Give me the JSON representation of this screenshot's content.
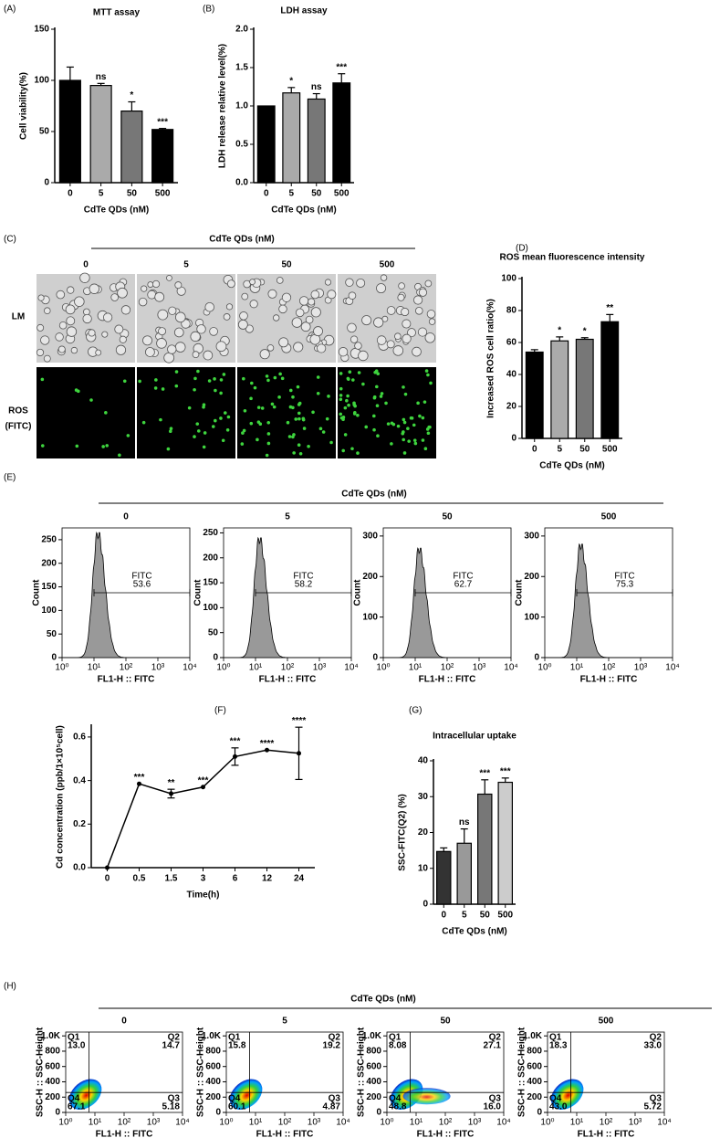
{
  "panel_labels": [
    "(A)",
    "(B)",
    "(C)",
    "(D)",
    "(E)",
    "(F)",
    "(G)",
    "(H)"
  ],
  "image_panel": {
    "header": "CdTe QDs (nM)",
    "columns": [
      "0",
      "5",
      "50",
      "500"
    ],
    "rows": [
      "LM",
      "ROS"
    ],
    "row_sublabel": "(FITC)"
  },
  "group_headers": {
    "E": "CdTe QDs (nM)",
    "H": "CdTe QDs (nM)"
  },
  "chart_data": [
    {
      "type": "bar",
      "title": "MTT assay",
      "categories": [
        "0",
        "5",
        "50",
        "500"
      ],
      "values": [
        100,
        95,
        70,
        52
      ],
      "errors": [
        13,
        2,
        9,
        1
      ],
      "annotations": [
        null,
        "ns",
        "*",
        "***"
      ],
      "colors": [
        "#000000",
        "#aaaaaa",
        "#777777",
        "#000000"
      ],
      "ylim": [
        0,
        150
      ],
      "yticks": [
        0,
        50,
        100,
        150
      ],
      "xlabel": "CdTe QDs (nM)",
      "ylabel": "Cell viability(%)"
    },
    {
      "type": "bar",
      "title": "LDH assay",
      "categories": [
        "0",
        "5",
        "50",
        "500"
      ],
      "values": [
        1.0,
        1.17,
        1.09,
        1.3
      ],
      "errors": [
        0,
        0.07,
        0.07,
        0.12
      ],
      "annotations": [
        null,
        "*",
        "ns",
        "***"
      ],
      "colors": [
        "#000000",
        "#aaaaaa",
        "#777777",
        "#000000"
      ],
      "ylim": [
        0,
        2
      ],
      "yticks": [
        {
          "value": 0,
          "label": "0.0"
        },
        {
          "value": 0.5,
          "label": "0.5"
        },
        {
          "value": 1,
          "label": "1.0"
        },
        {
          "value": 1.5,
          "label": "1.5"
        },
        {
          "value": 2,
          "label": "2.0"
        }
      ],
      "xlabel": "CdTe QDs (nM)",
      "ylabel": "LDH release relative level(%)"
    },
    {
      "type": "bar",
      "title": "ROS mean fluorescence intensity",
      "categories": [
        "0",
        "5",
        "50",
        "500"
      ],
      "values": [
        54,
        61,
        62,
        73
      ],
      "errors": [
        1.5,
        2.5,
        1,
        4.5
      ],
      "annotations": [
        null,
        "*",
        "*",
        "**"
      ],
      "colors": [
        "#000000",
        "#aaaaaa",
        "#777777",
        "#000000"
      ],
      "ylim": [
        0,
        100
      ],
      "yticks": [
        0,
        20,
        40,
        60,
        80,
        100
      ],
      "xlabel": "CdTe QDs (nM)",
      "ylabel": "Increased ROS cell ratio(%)"
    },
    {
      "type": "histogram",
      "title": "0",
      "peak": 265,
      "gate_label": "FITC",
      "gate_value": 53.6,
      "log_x": true,
      "xlim": [
        1,
        10000
      ],
      "xticks": [
        {
          "value": 1,
          "label": "10⁰"
        },
        {
          "value": 10,
          "label": "10¹"
        },
        {
          "value": 100,
          "label": "10²"
        },
        {
          "value": 1000,
          "label": "10³"
        },
        {
          "value": 10000,
          "label": "10⁴"
        }
      ],
      "ylim": [
        0,
        275
      ],
      "yticks": [
        0,
        50,
        100,
        150,
        200,
        250
      ],
      "xlabel": "FL1-H :: FITC",
      "ylabel": "Count"
    },
    {
      "type": "histogram",
      "title": "5",
      "peak": 240,
      "gate_label": "FITC",
      "gate_value": 58.2,
      "log_x": true,
      "xlim": [
        1,
        10000
      ],
      "xticks": [
        {
          "value": 1,
          "label": "10⁰"
        },
        {
          "value": 10,
          "label": "10¹"
        },
        {
          "value": 100,
          "label": "10²"
        },
        {
          "value": 1000,
          "label": "10³"
        },
        {
          "value": 10000,
          "label": "10⁴"
        }
      ],
      "ylim": [
        0,
        260
      ],
      "yticks": [
        0,
        50,
        100,
        150,
        200,
        250
      ],
      "xlabel": "FL1-H :: FITC",
      "ylabel": "Count"
    },
    {
      "type": "histogram",
      "title": "50",
      "peak": 270,
      "gate_label": "FITC",
      "gate_value": 62.7,
      "log_x": true,
      "xlim": [
        1,
        10000
      ],
      "xticks": [
        {
          "value": 1,
          "label": "10⁰"
        },
        {
          "value": 10,
          "label": "10¹"
        },
        {
          "value": 100,
          "label": "10²"
        },
        {
          "value": 1000,
          "label": "10³"
        },
        {
          "value": 10000,
          "label": "10⁴"
        }
      ],
      "ylim": [
        0,
        320
      ],
      "yticks": [
        0,
        100,
        200,
        300
      ],
      "xlabel": "FL1-H :: FITC",
      "ylabel": "Count"
    },
    {
      "type": "histogram",
      "title": "500",
      "peak": 280,
      "gate_label": "FITC",
      "gate_value": 75.3,
      "log_x": true,
      "xlim": [
        1,
        10000
      ],
      "xticks": [
        {
          "value": 1,
          "label": "10⁰"
        },
        {
          "value": 10,
          "label": "10¹"
        },
        {
          "value": 100,
          "label": "10²"
        },
        {
          "value": 1000,
          "label": "10³"
        },
        {
          "value": 10000,
          "label": "10⁴"
        }
      ],
      "ylim": [
        0,
        320
      ],
      "yticks": [
        0,
        100,
        200,
        300
      ],
      "xlabel": "FL1-H :: FITC",
      "ylabel": "Count"
    },
    {
      "type": "line",
      "categories": [
        "0",
        "0.5",
        "1.5",
        "3",
        "6",
        "12",
        "24"
      ],
      "values": [
        0,
        0.385,
        0.34,
        0.37,
        0.51,
        0.54,
        0.525
      ],
      "errors": [
        0,
        0,
        0.02,
        0,
        0.04,
        0,
        0.12
      ],
      "annotations": [
        null,
        "***",
        "**",
        "***",
        "***",
        "****",
        "****"
      ],
      "color": "#000000",
      "ylim": [
        0,
        0.65
      ],
      "yticks": [
        {
          "value": 0,
          "label": "0.0"
        },
        {
          "value": 0.2,
          "label": "0.2"
        },
        {
          "value": 0.4,
          "label": "0.4"
        },
        {
          "value": 0.6,
          "label": "0.6"
        }
      ],
      "xlabel": "Time(h)",
      "ylabel": "Cd concentration (ppb/1×10⁵cell)"
    },
    {
      "type": "bar",
      "title": "Intracellular uptake",
      "categories": [
        "0",
        "5",
        "50",
        "500"
      ],
      "values": [
        14.7,
        17,
        30.7,
        34
      ],
      "errors": [
        1,
        4,
        4,
        1.2
      ],
      "annotations": [
        null,
        "ns",
        "***",
        "***"
      ],
      "colors": [
        "#333333",
        "#999999",
        "#777777",
        "#cccccc"
      ],
      "ylim": [
        0,
        40
      ],
      "yticks": [
        0,
        10,
        20,
        30,
        40
      ],
      "xlabel": "CdTe QDs (nM)",
      "ylabel": "SSC-FITC(Q2) (%)"
    },
    {
      "type": "quadrant",
      "title": "0",
      "quadrants": [
        "Q1",
        "Q2",
        "Q3",
        "Q4"
      ],
      "values": [
        13.0,
        14.7,
        5.18,
        67.1
      ],
      "value_labels": [
        "13.0",
        "14.7",
        "5.18",
        "67.1"
      ],
      "log_x": true,
      "xlim": [
        1,
        10000
      ],
      "xticks": [
        {
          "value": 1,
          "label": "10⁰"
        },
        {
          "value": 10,
          "label": "10¹"
        },
        {
          "value": 100,
          "label": "10²"
        },
        {
          "value": 1000,
          "label": "10³"
        },
        {
          "value": 10000,
          "label": "10⁴"
        }
      ],
      "ylim": [
        0,
        1050
      ],
      "yticks": [
        0,
        200,
        400,
        600,
        800,
        {
          "value": 1000,
          "label": "1.0K"
        }
      ],
      "xlabel": "FL1-H :: FITC",
      "ylabel": "SSC-H :: SSC-Height"
    },
    {
      "type": "quadrant",
      "title": "5",
      "quadrants": [
        "Q1",
        "Q2",
        "Q3",
        "Q4"
      ],
      "values": [
        15.8,
        19.2,
        4.87,
        60.1
      ],
      "value_labels": [
        "15.8",
        "19.2",
        "4.87",
        "60.1"
      ],
      "log_x": true,
      "xlim": [
        1,
        10000
      ],
      "xticks": [
        {
          "value": 1,
          "label": "10⁰"
        },
        {
          "value": 10,
          "label": "10¹"
        },
        {
          "value": 100,
          "label": "10²"
        },
        {
          "value": 1000,
          "label": "10³"
        },
        {
          "value": 10000,
          "label": "10⁴"
        }
      ],
      "ylim": [
        0,
        1050
      ],
      "yticks": [
        0,
        200,
        400,
        600,
        800,
        {
          "value": 1000,
          "label": "1.0K"
        }
      ],
      "xlabel": "FL1-H :: FITC",
      "ylabel": "SSC-H :: SSC-Height"
    },
    {
      "type": "quadrant",
      "title": "50",
      "quadrants": [
        "Q1",
        "Q2",
        "Q3",
        "Q4"
      ],
      "values": [
        8.08,
        27.1,
        16.0,
        48.8
      ],
      "value_labels": [
        "8.08",
        "27.1",
        "16.0",
        "48.8"
      ],
      "log_x": true,
      "xlim": [
        1,
        10000
      ],
      "xticks": [
        {
          "value": 1,
          "label": "10⁰"
        },
        {
          "value": 10,
          "label": "10¹"
        },
        {
          "value": 100,
          "label": "10²"
        },
        {
          "value": 1000,
          "label": "10³"
        },
        {
          "value": 10000,
          "label": "10⁴"
        }
      ],
      "ylim": [
        0,
        1050
      ],
      "yticks": [
        0,
        200,
        400,
        600,
        800,
        {
          "value": 1000,
          "label": "1.0K"
        }
      ],
      "xlabel": "FL1-H :: FITC",
      "ylabel": "SSC-H :: SSC-Height"
    },
    {
      "type": "quadrant",
      "title": "500",
      "quadrants": [
        "Q1",
        "Q2",
        "Q3",
        "Q4"
      ],
      "values": [
        18.3,
        33.0,
        5.72,
        43.0
      ],
      "value_labels": [
        "18.3",
        "33.0",
        "5.72",
        "43.0"
      ],
      "log_x": true,
      "xlim": [
        1,
        10000
      ],
      "xticks": [
        {
          "value": 1,
          "label": "10⁰"
        },
        {
          "value": 10,
          "label": "10¹"
        },
        {
          "value": 100,
          "label": "10²"
        },
        {
          "value": 1000,
          "label": "10³"
        },
        {
          "value": 10000,
          "label": "10⁴"
        }
      ],
      "ylim": [
        0,
        1050
      ],
      "yticks": [
        0,
        200,
        400,
        600,
        800,
        {
          "value": 1000,
          "label": "1.0K"
        }
      ],
      "xlabel": "FL1-H :: FITC",
      "ylabel": "SSC-H :: SSC-Height"
    }
  ]
}
